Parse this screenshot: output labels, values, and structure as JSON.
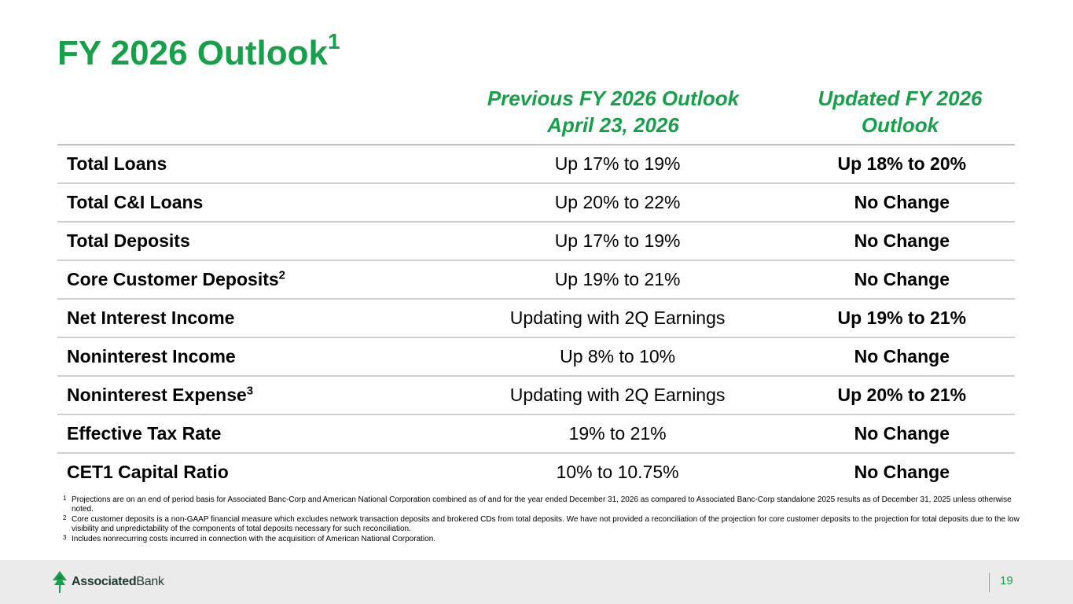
{
  "title": {
    "text": "FY 2026 Outlook",
    "superscript": "1"
  },
  "columns": {
    "previous": {
      "line1": "Previous FY 2026 Outlook",
      "line2": "April 23, 2026"
    },
    "updated": {
      "line1": "Updated FY 2026",
      "line2": "Outlook"
    }
  },
  "rows": [
    {
      "label": "Total Loans",
      "sup": "",
      "previous": "Up 17% to 19%",
      "updated": "Up 18% to 20%"
    },
    {
      "label": "Total C&I Loans",
      "sup": "",
      "previous": "Up 20% to 22%",
      "updated": "No Change"
    },
    {
      "label": "Total Deposits",
      "sup": "",
      "previous": "Up 17% to 19%",
      "updated": "No Change"
    },
    {
      "label": "Core Customer Deposits",
      "sup": "2",
      "previous": "Up 19% to 21%",
      "updated": "No Change"
    },
    {
      "label": "Net Interest Income",
      "sup": "",
      "previous": "Updating with 2Q Earnings",
      "updated": "Up 19% to 21%"
    },
    {
      "label": "Noninterest Income",
      "sup": "",
      "previous": "Up 8% to 10%",
      "updated": "No Change"
    },
    {
      "label": "Noninterest Expense",
      "sup": "3",
      "previous": "Updating with 2Q Earnings",
      "updated": "Up 20% to 21%"
    },
    {
      "label": "Effective Tax Rate",
      "sup": "",
      "previous": "19% to 21%",
      "updated": "No Change"
    },
    {
      "label": "CET1 Capital Ratio",
      "sup": "",
      "previous": "10% to 10.75%",
      "updated": "No Change"
    }
  ],
  "footnotes": [
    {
      "num": "1",
      "text": "Projections are on an end of period basis for Associated Banc-Corp and American National Corporation combined as of and for the year ended December 31, 2026 as compared to Associated Banc-Corp standalone 2025 results as of December 31, 2025 unless otherwise noted."
    },
    {
      "num": "2",
      "text": "Core customer deposits is a non-GAAP financial measure which excludes network transaction deposits and brokered CDs from total deposits. We have not provided a reconciliation of the projection for core customer deposits to the projection for total deposits due to the low visibility and unpredictability of the components of total deposits necessary for such reconciliation."
    },
    {
      "num": "3",
      "text": "Includes nonrecurring costs incurred in connection with the acquisition of American National Corporation."
    }
  ],
  "footer": {
    "logo_bold": "Associated",
    "logo_regular": "Bank",
    "logo_icon": "associated-bank-tree-icon",
    "page_number": "19"
  },
  "colors": {
    "brand_green": "#17a04a",
    "footer_bg": "#ebebeb",
    "divider": "#cfcfcf"
  }
}
